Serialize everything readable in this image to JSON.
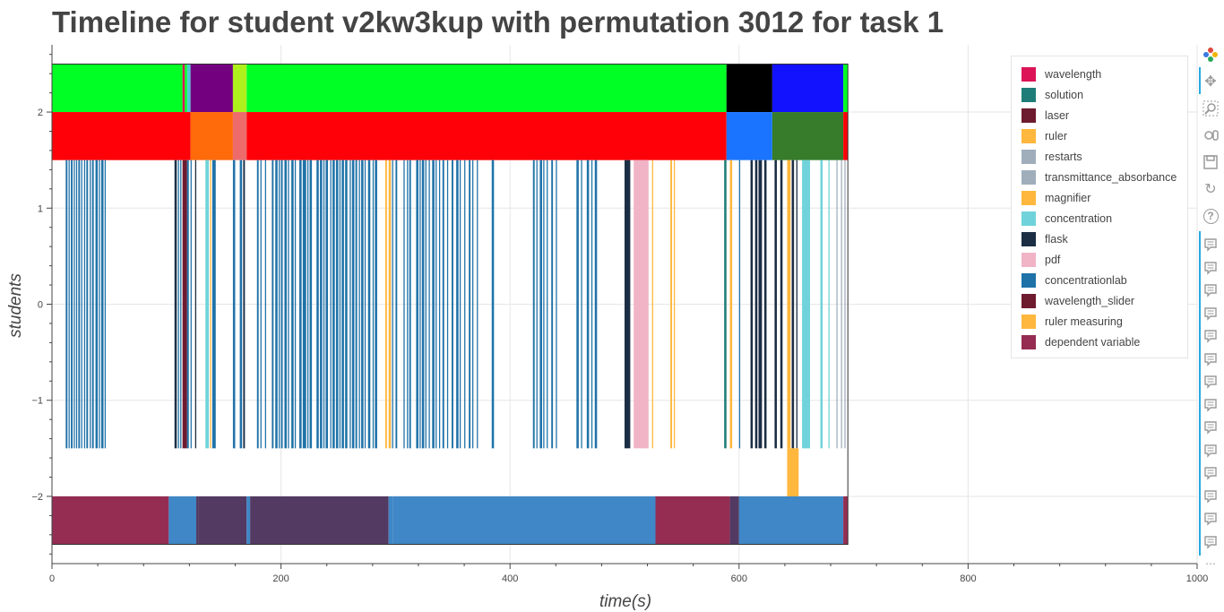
{
  "title": "Timeline for student v2kw3kup with permutation 3012 for task 1",
  "chart_data": {
    "type": "timeline",
    "title": "Timeline for student v2kw3kup with permutation 3012 for task 1",
    "xlabel": "time(s)",
    "ylabel": "students",
    "xlim": [
      0,
      1000
    ],
    "ylim": [
      -2.7,
      2.7
    ],
    "xticks": [
      0,
      200,
      400,
      600,
      800,
      1000
    ],
    "yticks": [
      -2,
      -1,
      0,
      1,
      2
    ],
    "xtick_labels": [
      "0",
      "200",
      "400",
      "600",
      "800",
      "1000"
    ],
    "ytick_labels": [
      "−2",
      "−1",
      "0",
      "1",
      "2"
    ],
    "grid": true,
    "legend_position": "top-right",
    "legend": [
      {
        "label": "wavelength",
        "color": "#dc1457"
      },
      {
        "label": "solution",
        "color": "#1f7d78"
      },
      {
        "label": "laser",
        "color": "#6e1a2f"
      },
      {
        "label": "ruler",
        "color": "#ffb73d"
      },
      {
        "label": "restarts",
        "color": "#a0aebc"
      },
      {
        "label": "transmittance_absorbance",
        "color": "#a0aebc"
      },
      {
        "label": "magnifier",
        "color": "#ffb73d"
      },
      {
        "label": "concentration",
        "color": "#70d3db"
      },
      {
        "label": "flask",
        "color": "#1b2e44"
      },
      {
        "label": "pdf",
        "color": "#f0b4c6"
      },
      {
        "label": "concentrationlab",
        "color": "#1f72a8"
      },
      {
        "label": "wavelength_slider",
        "color": "#6e1a2f"
      },
      {
        "label": "ruler measuring",
        "color": "#ffb73d"
      },
      {
        "label": "dependent variable",
        "color": "#962c52"
      }
    ],
    "top_band": {
      "y": [
        2.0,
        2.5
      ],
      "segments": [
        {
          "x0": 0,
          "x1": 114,
          "color": "#00ff24"
        },
        {
          "x0": 114,
          "x1": 116,
          "color": "#dc1457"
        },
        {
          "x0": 116,
          "x1": 118,
          "color": "#00ff24"
        },
        {
          "x0": 118,
          "x1": 121,
          "color": "#4ecbd6"
        },
        {
          "x0": 121,
          "x1": 158,
          "color": "#73007e"
        },
        {
          "x0": 158,
          "x1": 170,
          "color": "#aef01c"
        },
        {
          "x0": 170,
          "x1": 589,
          "color": "#00ff24"
        },
        {
          "x0": 589,
          "x1": 629,
          "color": "#000000"
        },
        {
          "x0": 629,
          "x1": 691,
          "color": "#1212ff"
        },
        {
          "x0": 691,
          "x1": 695,
          "color": "#00ff24"
        }
      ]
    },
    "second_band": {
      "y": [
        1.5,
        2.0
      ],
      "segments": [
        {
          "x0": 0,
          "x1": 121,
          "color": "#ff0008"
        },
        {
          "x0": 121,
          "x1": 158,
          "color": "#ff6a0b"
        },
        {
          "x0": 158,
          "x1": 170,
          "color": "#ed6b6b"
        },
        {
          "x0": 170,
          "x1": 589,
          "color": "#ff0008"
        },
        {
          "x0": 589,
          "x1": 629,
          "color": "#1a74ff"
        },
        {
          "x0": 629,
          "x1": 691,
          "color": "#367c2a"
        },
        {
          "x0": 691,
          "x1": 695,
          "color": "#ff0008"
        }
      ]
    },
    "events_band": {
      "y": [
        -1.5,
        1.5
      ],
      "events": [
        {
          "x0": 12,
          "x1": 13.5,
          "color": "#1f72a8"
        },
        {
          "x0": 14.5,
          "x1": 15.5,
          "color": "#1f72a8"
        },
        {
          "x0": 16.5,
          "x1": 18,
          "color": "#1f72a8"
        },
        {
          "x0": 19,
          "x1": 20,
          "color": "#1f72a8"
        },
        {
          "x0": 21,
          "x1": 22,
          "color": "#1f72a8"
        },
        {
          "x0": 23,
          "x1": 24.5,
          "color": "#1f72a8"
        },
        {
          "x0": 25.5,
          "x1": 26.5,
          "color": "#1f72a8"
        },
        {
          "x0": 28,
          "x1": 29,
          "color": "#1f72a8"
        },
        {
          "x0": 30,
          "x1": 31.5,
          "color": "#1f72a8"
        },
        {
          "x0": 33,
          "x1": 34,
          "color": "#1f72a8"
        },
        {
          "x0": 35,
          "x1": 36.5,
          "color": "#1f72a8"
        },
        {
          "x0": 38,
          "x1": 40,
          "color": "#1f72a8"
        },
        {
          "x0": 41,
          "x1": 42,
          "color": "#1f72a8"
        },
        {
          "x0": 43,
          "x1": 45,
          "color": "#1f72a8"
        },
        {
          "x0": 46,
          "x1": 47,
          "color": "#1f72a8"
        },
        {
          "x0": 107,
          "x1": 109,
          "color": "#1b2e44"
        },
        {
          "x0": 110,
          "x1": 111,
          "color": "#1f72a8"
        },
        {
          "x0": 112,
          "x1": 113,
          "color": "#1f72a8"
        },
        {
          "x0": 114,
          "x1": 118,
          "color": "#6e1a2f"
        },
        {
          "x0": 118,
          "x1": 119.5,
          "color": "#1f72a8"
        },
        {
          "x0": 121,
          "x1": 122,
          "color": "#1f72a8"
        },
        {
          "x0": 125,
          "x1": 126,
          "color": "#1b2e44"
        },
        {
          "x0": 134,
          "x1": 137,
          "color": "#70d3db"
        },
        {
          "x0": 138,
          "x1": 139,
          "color": "#ffb73d"
        },
        {
          "x0": 140,
          "x1": 143,
          "color": "#1f72a8"
        },
        {
          "x0": 158,
          "x1": 160,
          "color": "#1f72a8"
        },
        {
          "x0": 164,
          "x1": 166,
          "color": "#1f72a8"
        },
        {
          "x0": 167,
          "x1": 168.5,
          "color": "#1b2e44"
        },
        {
          "x0": 179,
          "x1": 180.5,
          "color": "#1f72a8"
        },
        {
          "x0": 182,
          "x1": 183,
          "color": "#1f72a8"
        },
        {
          "x0": 186,
          "x1": 187,
          "color": "#1f72a8"
        },
        {
          "x0": 192,
          "x1": 193.5,
          "color": "#1f72a8"
        },
        {
          "x0": 195,
          "x1": 197,
          "color": "#1f72a8"
        },
        {
          "x0": 198,
          "x1": 199,
          "color": "#1f72a8"
        },
        {
          "x0": 200,
          "x1": 201.5,
          "color": "#1f72a8"
        },
        {
          "x0": 203,
          "x1": 205,
          "color": "#1f72a8"
        },
        {
          "x0": 206,
          "x1": 207,
          "color": "#1f72a8"
        },
        {
          "x0": 209,
          "x1": 211,
          "color": "#1f72a8"
        },
        {
          "x0": 212,
          "x1": 213,
          "color": "#1f72a8"
        },
        {
          "x0": 216,
          "x1": 218,
          "color": "#1f72a8"
        },
        {
          "x0": 219,
          "x1": 222,
          "color": "#1f72a8"
        },
        {
          "x0": 223,
          "x1": 224,
          "color": "#1f72a8"
        },
        {
          "x0": 225,
          "x1": 227,
          "color": "#1f72a8"
        },
        {
          "x0": 231,
          "x1": 233,
          "color": "#1f72a8"
        },
        {
          "x0": 234,
          "x1": 236,
          "color": "#1f72a8"
        },
        {
          "x0": 237,
          "x1": 238,
          "color": "#1f72a8"
        },
        {
          "x0": 239,
          "x1": 241,
          "color": "#1f72a8"
        },
        {
          "x0": 243,
          "x1": 244,
          "color": "#1f72a8"
        },
        {
          "x0": 245,
          "x1": 247,
          "color": "#1f72a8"
        },
        {
          "x0": 248,
          "x1": 250,
          "color": "#1f72a8"
        },
        {
          "x0": 251,
          "x1": 252,
          "color": "#1f72a8"
        },
        {
          "x0": 253,
          "x1": 255,
          "color": "#1f72a8"
        },
        {
          "x0": 256,
          "x1": 258,
          "color": "#1f72a8"
        },
        {
          "x0": 260,
          "x1": 261,
          "color": "#1f72a8"
        },
        {
          "x0": 262,
          "x1": 264,
          "color": "#1f72a8"
        },
        {
          "x0": 265,
          "x1": 266.5,
          "color": "#1f72a8"
        },
        {
          "x0": 268,
          "x1": 269,
          "color": "#1f72a8"
        },
        {
          "x0": 270,
          "x1": 272,
          "color": "#1f72a8"
        },
        {
          "x0": 273,
          "x1": 274,
          "color": "#1f72a8"
        },
        {
          "x0": 276,
          "x1": 278,
          "color": "#1f72a8"
        },
        {
          "x0": 280,
          "x1": 281,
          "color": "#1f72a8"
        },
        {
          "x0": 282,
          "x1": 284,
          "color": "#1f72a8"
        },
        {
          "x0": 291,
          "x1": 292.5,
          "color": "#ffb73d"
        },
        {
          "x0": 294,
          "x1": 296,
          "color": "#ffb73d"
        },
        {
          "x0": 297,
          "x1": 298,
          "color": "#1f72a8"
        },
        {
          "x0": 300,
          "x1": 301.5,
          "color": "#1f72a8"
        },
        {
          "x0": 307,
          "x1": 308,
          "color": "#1f72a8"
        },
        {
          "x0": 310,
          "x1": 311,
          "color": "#1f72a8"
        },
        {
          "x0": 312,
          "x1": 313.5,
          "color": "#1f72a8"
        },
        {
          "x0": 318,
          "x1": 320,
          "color": "#1f72a8"
        },
        {
          "x0": 321,
          "x1": 322,
          "color": "#1f72a8"
        },
        {
          "x0": 323,
          "x1": 325,
          "color": "#1f72a8"
        },
        {
          "x0": 326,
          "x1": 327,
          "color": "#1f72a8"
        },
        {
          "x0": 329,
          "x1": 330,
          "color": "#1f72a8"
        },
        {
          "x0": 332,
          "x1": 334,
          "color": "#1f72a8"
        },
        {
          "x0": 335,
          "x1": 336,
          "color": "#1f72a8"
        },
        {
          "x0": 338,
          "x1": 339,
          "color": "#1f72a8"
        },
        {
          "x0": 341,
          "x1": 342.5,
          "color": "#1f72a8"
        },
        {
          "x0": 345,
          "x1": 346,
          "color": "#1f72a8"
        },
        {
          "x0": 349,
          "x1": 350.5,
          "color": "#1f72a8"
        },
        {
          "x0": 353,
          "x1": 355,
          "color": "#1f72a8"
        },
        {
          "x0": 356,
          "x1": 357,
          "color": "#1f72a8"
        },
        {
          "x0": 360,
          "x1": 361,
          "color": "#1f72a8"
        },
        {
          "x0": 364,
          "x1": 365.5,
          "color": "#1f72a8"
        },
        {
          "x0": 367,
          "x1": 368,
          "color": "#1f72a8"
        },
        {
          "x0": 371,
          "x1": 372,
          "color": "#1f72a8"
        },
        {
          "x0": 384,
          "x1": 386,
          "color": "#1f72a8"
        },
        {
          "x0": 420,
          "x1": 421.5,
          "color": "#1f72a8"
        },
        {
          "x0": 423,
          "x1": 424,
          "color": "#1f72a8"
        },
        {
          "x0": 426,
          "x1": 428,
          "color": "#1f72a8"
        },
        {
          "x0": 429,
          "x1": 430,
          "color": "#1f72a8"
        },
        {
          "x0": 432,
          "x1": 433,
          "color": "#1f72a8"
        },
        {
          "x0": 436,
          "x1": 437.5,
          "color": "#1f72a8"
        },
        {
          "x0": 440,
          "x1": 441,
          "color": "#1f72a8"
        },
        {
          "x0": 458,
          "x1": 460,
          "color": "#1f72a8"
        },
        {
          "x0": 462,
          "x1": 463,
          "color": "#1f72a8"
        },
        {
          "x0": 467,
          "x1": 469,
          "color": "#1f72a8"
        },
        {
          "x0": 471,
          "x1": 472,
          "color": "#1f72a8"
        },
        {
          "x0": 474,
          "x1": 476,
          "color": "#1f72a8"
        },
        {
          "x0": 500,
          "x1": 505,
          "color": "#1b2e44"
        },
        {
          "x0": 508,
          "x1": 521,
          "color": "#f0b4c6"
        },
        {
          "x0": 524,
          "x1": 525,
          "color": "#ffb73d"
        },
        {
          "x0": 540,
          "x1": 541.5,
          "color": "#ffb73d"
        },
        {
          "x0": 543,
          "x1": 544,
          "color": "#ffb73d"
        },
        {
          "x0": 587,
          "x1": 589,
          "color": "#1f7d78"
        },
        {
          "x0": 592,
          "x1": 594,
          "color": "#ffb73d"
        },
        {
          "x0": 600,
          "x1": 601,
          "color": "#1f72a8"
        },
        {
          "x0": 610,
          "x1": 612,
          "color": "#1b2e44"
        },
        {
          "x0": 614,
          "x1": 616,
          "color": "#1b2e44"
        },
        {
          "x0": 617,
          "x1": 620,
          "color": "#1b2e44"
        },
        {
          "x0": 622,
          "x1": 624,
          "color": "#1b2e44"
        },
        {
          "x0": 631,
          "x1": 633,
          "color": "#1b2e44"
        },
        {
          "x0": 636,
          "x1": 638,
          "color": "#1b2e44"
        },
        {
          "x0": 642,
          "x1": 645,
          "color": "#ffb73d"
        },
        {
          "x0": 646,
          "x1": 648,
          "color": "#1b2e44"
        },
        {
          "x0": 650,
          "x1": 651,
          "color": "#1b2e44"
        },
        {
          "x0": 655,
          "x1": 662,
          "color": "#70d3db"
        },
        {
          "x0": 671,
          "x1": 673,
          "color": "#70d3db"
        },
        {
          "x0": 678,
          "x1": 679,
          "color": "#70d3db"
        },
        {
          "x0": 685,
          "x1": 686,
          "color": "#a0aebc"
        },
        {
          "x0": 689,
          "x1": 690,
          "color": "#a0aebc"
        },
        {
          "x0": 692,
          "x1": 693,
          "color": "#a0aebc"
        }
      ]
    },
    "ruler_measuring_event": {
      "x0": 642,
      "x1": 652,
      "y0": -2.0,
      "y1": -1.5,
      "color": "#ffb73d"
    },
    "bottom_band": {
      "y": [
        -2.5,
        -2.0
      ],
      "segments": [
        {
          "x0": 0,
          "x1": 102,
          "color": "#952d52"
        },
        {
          "x0": 102,
          "x1": 126,
          "color": "#3f87c7"
        },
        {
          "x0": 126,
          "x1": 128,
          "color": "#523a62"
        },
        {
          "x0": 128,
          "x1": 170,
          "color": "#523a62"
        },
        {
          "x0": 170,
          "x1": 173,
          "color": "#3f87c7"
        },
        {
          "x0": 173,
          "x1": 294,
          "color": "#523a62"
        },
        {
          "x0": 294,
          "x1": 298,
          "color": "#3f87c7"
        },
        {
          "x0": 298,
          "x1": 527,
          "color": "#3f87c7"
        },
        {
          "x0": 527,
          "x1": 592,
          "color": "#952d52"
        },
        {
          "x0": 592,
          "x1": 600,
          "color": "#523a62"
        },
        {
          "x0": 600,
          "x1": 691,
          "color": "#3f87c7"
        },
        {
          "x0": 691,
          "x1": 695,
          "color": "#952d52"
        }
      ]
    },
    "session_end": 695
  },
  "toolbar": {
    "icons": [
      "bokeh-logo-icon",
      "pan-icon",
      "box-zoom-icon",
      "wheel-zoom-icon",
      "save-icon",
      "reset-icon",
      "help-icon",
      "hover-icon"
    ],
    "more_glyph": "⋯",
    "help_glyph": "?",
    "reset_glyph": "↻",
    "pan_glyph": "✥"
  }
}
